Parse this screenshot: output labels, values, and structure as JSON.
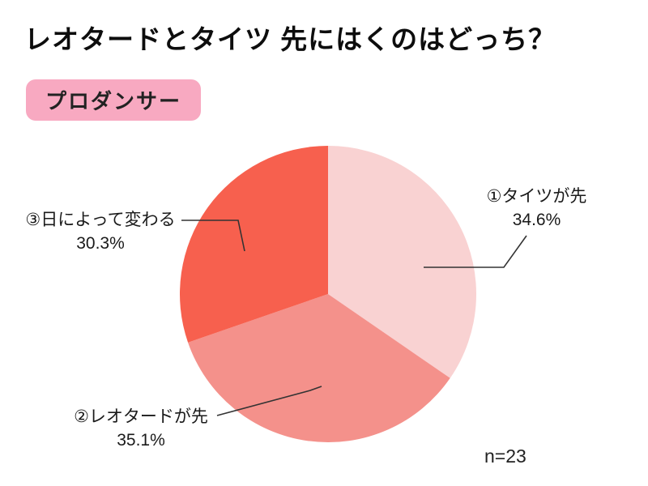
{
  "chart_data": {
    "type": "pie",
    "title": "レオタードとタイツ 先にはくのはどっち？",
    "group_label": "プロダンサー",
    "n": 23,
    "n_label": "n=23",
    "start_angle_deg": -90,
    "direction": "clockwise",
    "value_format": "percent",
    "legend_position": "callout-labels",
    "slices": [
      {
        "label": "①タイツが先",
        "value": 34.6,
        "pct_label": "34.6%",
        "color": "#F9D2D2"
      },
      {
        "label": "②レオタードが先",
        "value": 35.1,
        "pct_label": "35.1%",
        "color": "#F4918B"
      },
      {
        "label": "③日によって変わる",
        "value": 30.3,
        "pct_label": "30.3%",
        "color": "#F7604E"
      }
    ],
    "colors": {
      "badge_bg": "#F8A9C1",
      "badge_text": "#222222",
      "title_text": "#0D0D0D",
      "leader_line": "#333333",
      "background": "#FFFFFF"
    }
  }
}
